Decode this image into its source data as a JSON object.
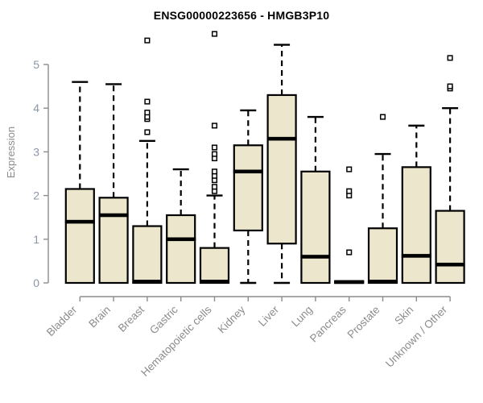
{
  "chart_data": {
    "type": "boxplot",
    "title": "ENSG00000223656 - HMGB3P10",
    "ylabel": "Expression",
    "xlabel": "",
    "ylim": [
      0,
      5
    ],
    "yticks": [
      0,
      1,
      2,
      3,
      4,
      5
    ],
    "grid": "off",
    "legend": "none",
    "categories": [
      "Bladder",
      "Brain",
      "Breast",
      "Gastric",
      "Hematopoietic cells",
      "Kidney",
      "Liver",
      "Lung",
      "Pancreas",
      "Prostate",
      "Skin",
      "Unknown / Other"
    ],
    "series": [
      {
        "name": "Bladder",
        "whisker_low": 0,
        "q1": 0,
        "median": 1.4,
        "q3": 2.15,
        "whisker_high": 4.6,
        "outliers": []
      },
      {
        "name": "Brain",
        "whisker_low": 0,
        "q1": 0,
        "median": 1.55,
        "q3": 1.95,
        "whisker_high": 4.55,
        "outliers": []
      },
      {
        "name": "Breast",
        "whisker_low": 0,
        "q1": 0,
        "median": 0.03,
        "q3": 1.3,
        "whisker_high": 3.25,
        "outliers": [
          3.45,
          3.75,
          3.8,
          3.9,
          4.15,
          5.55
        ]
      },
      {
        "name": "Gastric",
        "whisker_low": 0,
        "q1": 0,
        "median": 1.0,
        "q3": 1.55,
        "whisker_high": 2.6,
        "outliers": []
      },
      {
        "name": "Hematopoietic cells",
        "whisker_low": 0,
        "q1": 0,
        "median": 0.03,
        "q3": 0.8,
        "whisker_high": 2.0,
        "outliers": [
          2.1,
          2.2,
          2.35,
          2.45,
          2.55,
          2.85,
          2.95,
          3.1,
          3.6,
          5.7
        ]
      },
      {
        "name": "Kidney",
        "whisker_low": 0,
        "q1": 1.2,
        "median": 2.55,
        "q3": 3.15,
        "whisker_high": 3.95,
        "outliers": []
      },
      {
        "name": "Liver",
        "whisker_low": 0,
        "q1": 0.9,
        "median": 3.3,
        "q3": 4.3,
        "whisker_high": 5.45,
        "outliers": []
      },
      {
        "name": "Lung",
        "whisker_low": 0,
        "q1": 0,
        "median": 0.6,
        "q3": 2.55,
        "whisker_high": 3.8,
        "outliers": []
      },
      {
        "name": "Pancreas",
        "whisker_low": 0,
        "q1": 0,
        "median": 0.02,
        "q3": 0.04,
        "whisker_high": 0.04,
        "outliers": [
          0.7,
          2.0,
          2.1,
          2.6
        ]
      },
      {
        "name": "Prostate",
        "whisker_low": 0,
        "q1": 0,
        "median": 0.03,
        "q3": 1.25,
        "whisker_high": 2.95,
        "outliers": [
          3.8
        ]
      },
      {
        "name": "Skin",
        "whisker_low": 0,
        "q1": 0,
        "median": 0.62,
        "q3": 2.65,
        "whisker_high": 3.6,
        "outliers": []
      },
      {
        "name": "Unknown / Other",
        "whisker_low": 0,
        "q1": 0,
        "median": 0.42,
        "q3": 1.65,
        "whisker_high": 4.0,
        "outliers": [
          4.45,
          4.5,
          5.15
        ]
      }
    ],
    "colors": {
      "box_fill": "#ECE7CC",
      "box_border": "#000000",
      "median": "#000000",
      "whisker": "#000000",
      "outlier_stroke": "#000000",
      "axis_line": "#8c8c8c",
      "y_tick_label": "#8b96a5",
      "x_tick_label": "#8c8c8c",
      "title": "#000000",
      "background": "#ffffff"
    }
  }
}
